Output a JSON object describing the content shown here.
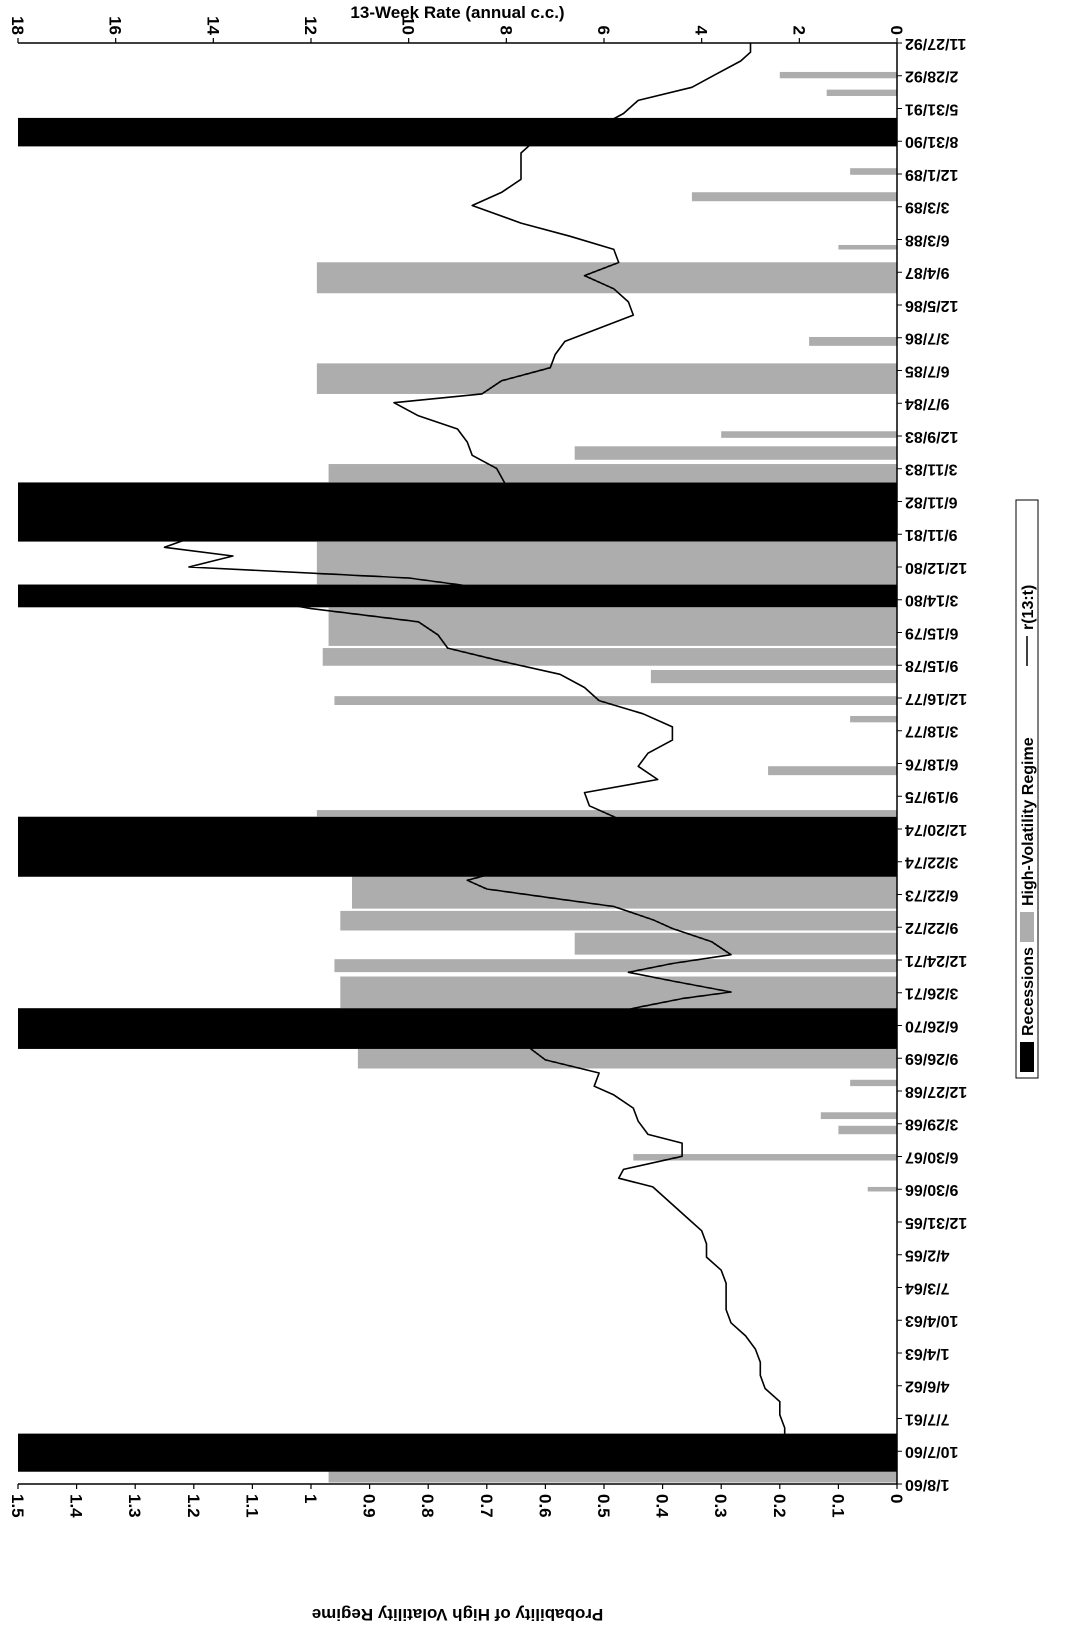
{
  "chart_data": {
    "type": "line",
    "orientation": "rotated-90-clockwise",
    "left_axis_title": "Probability of High Volatility Regime",
    "left_axis_ticks": [
      "0",
      "0.1",
      "0.2",
      "0.3",
      "0.4",
      "0.5",
      "0.6",
      "0.7",
      "0.8",
      "0.9",
      "1",
      "1.1",
      "1.2",
      "1.3",
      "1.4",
      "1.5"
    ],
    "left_axis_range": [
      0,
      1.5
    ],
    "top_axis_title": "13-Week Rate (annual c.c.)",
    "top_axis_ticks": [
      "0",
      "2",
      "4",
      "6",
      "8",
      "10",
      "12",
      "14",
      "16",
      "18"
    ],
    "top_axis_range": [
      0,
      18
    ],
    "date_labels": [
      "1/8/60",
      "10/7/60",
      "7/7/61",
      "4/6/62",
      "1/4/63",
      "10/4/63",
      "7/3/64",
      "4/2/65",
      "12/31/65",
      "9/30/66",
      "6/30/67",
      "3/29/68",
      "12/27/68",
      "9/26/69",
      "6/26/70",
      "3/26/71",
      "12/24/71",
      "9/22/72",
      "6/22/73",
      "3/22/74",
      "12/20/74",
      "9/19/75",
      "6/18/76",
      "3/18/77",
      "12/16/77",
      "9/15/78",
      "6/15/79",
      "3/14/80",
      "12/12/80",
      "9/11/81",
      "6/11/82",
      "3/11/83",
      "12/9/83",
      "9/7/84",
      "6/7/85",
      "3/7/86",
      "12/5/86",
      "9/4/87",
      "6/3/88",
      "3/3/89",
      "12/1/89",
      "8/31/90",
      "5/31/91",
      "2/28/92",
      "11/27/92"
    ],
    "date_range": [
      1960.02,
      1992.91
    ],
    "recessions": [
      {
        "label": "1960-61",
        "start": 1960.3,
        "end": 1961.17,
        "height": 1.5
      },
      {
        "label": "1969-70",
        "start": 1969.95,
        "end": 1970.88,
        "height": 1.5
      },
      {
        "label": "1973-75",
        "start": 1973.88,
        "end": 1975.25,
        "height": 1.5
      },
      {
        "label": "1980",
        "start": 1980.03,
        "end": 1980.55,
        "height": 1.5
      },
      {
        "label": "1981-82",
        "start": 1981.53,
        "end": 1982.88,
        "height": 1.5
      },
      {
        "label": "1990-91",
        "start": 1990.55,
        "end": 1991.2,
        "height": 1.5
      }
    ],
    "high_volatility_regime": [
      {
        "start": 1960.05,
        "end": 1960.35,
        "max": 0.97
      },
      {
        "start": 1966.7,
        "end": 1966.8,
        "max": 0.05
      },
      {
        "start": 1967.4,
        "end": 1967.55,
        "max": 0.45
      },
      {
        "start": 1968.0,
        "end": 1968.2,
        "max": 0.1
      },
      {
        "start": 1968.35,
        "end": 1968.5,
        "max": 0.13
      },
      {
        "start": 1969.1,
        "end": 1969.25,
        "max": 0.08
      },
      {
        "start": 1969.5,
        "end": 1969.95,
        "max": 0.92
      },
      {
        "start": 1970.88,
        "end": 1971.6,
        "max": 0.95
      },
      {
        "start": 1971.7,
        "end": 1972.0,
        "max": 0.96
      },
      {
        "start": 1972.1,
        "end": 1972.6,
        "max": 0.55
      },
      {
        "start": 1972.65,
        "end": 1973.1,
        "max": 0.95
      },
      {
        "start": 1973.15,
        "end": 1973.88,
        "max": 0.93
      },
      {
        "start": 1975.25,
        "end": 1975.4,
        "max": 0.99
      },
      {
        "start": 1976.2,
        "end": 1976.4,
        "max": 0.22
      },
      {
        "start": 1977.4,
        "end": 1977.55,
        "max": 0.08
      },
      {
        "start": 1977.8,
        "end": 1978.0,
        "max": 0.96
      },
      {
        "start": 1978.3,
        "end": 1978.6,
        "max": 0.42
      },
      {
        "start": 1978.7,
        "end": 1979.1,
        "max": 0.98
      },
      {
        "start": 1979.15,
        "end": 1980.03,
        "max": 0.97
      },
      {
        "start": 1980.55,
        "end": 1981.53,
        "max": 0.99
      },
      {
        "start": 1982.88,
        "end": 1983.3,
        "max": 0.97
      },
      {
        "start": 1983.4,
        "end": 1983.7,
        "max": 0.55
      },
      {
        "start": 1983.9,
        "end": 1984.05,
        "max": 0.3
      },
      {
        "start": 1984.9,
        "end": 1985.6,
        "max": 0.99
      },
      {
        "start": 1986.0,
        "end": 1986.2,
        "max": 0.15
      },
      {
        "start": 1987.2,
        "end": 1987.9,
        "max": 0.99
      },
      {
        "start": 1988.2,
        "end": 1988.3,
        "max": 0.1
      },
      {
        "start": 1989.3,
        "end": 1989.5,
        "max": 0.35
      },
      {
        "start": 1989.9,
        "end": 1990.05,
        "max": 0.08
      },
      {
        "start": 1991.7,
        "end": 1991.85,
        "max": 0.12
      },
      {
        "start": 1992.1,
        "end": 1992.25,
        "max": 0.2
      }
    ],
    "rate_series": {
      "name": "r(13:t)",
      "points": [
        [
          1961.0,
          2.3
        ],
        [
          1961.3,
          2.3
        ],
        [
          1961.6,
          2.4
        ],
        [
          1961.9,
          2.4
        ],
        [
          1962.2,
          2.7
        ],
        [
          1962.5,
          2.8
        ],
        [
          1962.8,
          2.8
        ],
        [
          1963.1,
          2.9
        ],
        [
          1963.4,
          3.1
        ],
        [
          1963.7,
          3.4
        ],
        [
          1964.0,
          3.5
        ],
        [
          1964.3,
          3.5
        ],
        [
          1964.6,
          3.5
        ],
        [
          1964.9,
          3.6
        ],
        [
          1965.2,
          3.9
        ],
        [
          1965.5,
          3.9
        ],
        [
          1965.8,
          4.0
        ],
        [
          1966.1,
          4.3
        ],
        [
          1966.4,
          4.6
        ],
        [
          1966.8,
          5.0
        ],
        [
          1967.0,
          5.7
        ],
        [
          1967.2,
          5.6
        ],
        [
          1967.5,
          4.4
        ],
        [
          1967.8,
          4.4
        ],
        [
          1968.0,
          5.1
        ],
        [
          1968.3,
          5.3
        ],
        [
          1968.6,
          5.4
        ],
        [
          1968.9,
          5.8
        ],
        [
          1969.1,
          6.2
        ],
        [
          1969.4,
          6.1
        ],
        [
          1969.7,
          7.2
        ],
        [
          1969.95,
          7.5
        ],
        [
          1970.3,
          7.0
        ],
        [
          1970.6,
          6.5
        ],
        [
          1970.9,
          5.3
        ],
        [
          1971.1,
          4.4
        ],
        [
          1971.25,
          3.4
        ],
        [
          1971.5,
          4.6
        ],
        [
          1971.7,
          5.5
        ],
        [
          1971.9,
          4.6
        ],
        [
          1972.1,
          3.4
        ],
        [
          1972.4,
          3.8
        ],
        [
          1972.7,
          4.6
        ],
        [
          1972.9,
          5.0
        ],
        [
          1973.2,
          5.8
        ],
        [
          1973.4,
          7.1
        ],
        [
          1973.6,
          8.4
        ],
        [
          1973.8,
          8.8
        ],
        [
          1974.1,
          7.8
        ],
        [
          1974.4,
          8.2
        ],
        [
          1974.7,
          8.4
        ],
        [
          1974.9,
          7.2
        ],
        [
          1975.2,
          5.7
        ],
        [
          1975.5,
          6.3
        ],
        [
          1975.8,
          6.4
        ],
        [
          1976.1,
          4.9
        ],
        [
          1976.4,
          5.3
        ],
        [
          1976.7,
          5.1
        ],
        [
          1977.0,
          4.6
        ],
        [
          1977.3,
          4.6
        ],
        [
          1977.6,
          5.2
        ],
        [
          1977.9,
          6.1
        ],
        [
          1978.2,
          6.4
        ],
        [
          1978.5,
          6.9
        ],
        [
          1978.8,
          8.1
        ],
        [
          1979.1,
          9.2
        ],
        [
          1979.4,
          9.4
        ],
        [
          1979.7,
          9.8
        ],
        [
          1980.0,
          12.0
        ],
        [
          1980.2,
          13.0
        ],
        [
          1980.4,
          8.0
        ],
        [
          1980.7,
          10.0
        ],
        [
          1980.95,
          14.5
        ],
        [
          1981.2,
          13.6
        ],
        [
          1981.4,
          15.0
        ],
        [
          1981.6,
          14.5
        ],
        [
          1981.9,
          11.0
        ],
        [
          1982.2,
          12.5
        ],
        [
          1982.5,
          12.6
        ],
        [
          1982.8,
          8.0
        ],
        [
          1983.2,
          8.2
        ],
        [
          1983.5,
          8.7
        ],
        [
          1983.8,
          8.8
        ],
        [
          1984.1,
          9.0
        ],
        [
          1984.4,
          9.8
        ],
        [
          1984.7,
          10.3
        ],
        [
          1984.9,
          8.5
        ],
        [
          1985.2,
          8.1
        ],
        [
          1985.5,
          7.1
        ],
        [
          1985.8,
          7.0
        ],
        [
          1986.1,
          6.8
        ],
        [
          1986.4,
          6.1
        ],
        [
          1986.7,
          5.4
        ],
        [
          1987.0,
          5.5
        ],
        [
          1987.3,
          5.8
        ],
        [
          1987.6,
          6.4
        ],
        [
          1987.9,
          5.7
        ],
        [
          1988.2,
          5.8
        ],
        [
          1988.5,
          6.7
        ],
        [
          1988.8,
          7.7
        ],
        [
          1989.2,
          8.7
        ],
        [
          1989.5,
          8.1
        ],
        [
          1989.8,
          7.7
        ],
        [
          1990.1,
          7.7
        ],
        [
          1990.4,
          7.7
        ],
        [
          1990.7,
          7.4
        ],
        [
          1991.0,
          6.1
        ],
        [
          1991.3,
          5.6
        ],
        [
          1991.6,
          5.3
        ],
        [
          1991.9,
          4.2
        ],
        [
          1992.2,
          3.7
        ],
        [
          1992.5,
          3.2
        ],
        [
          1992.7,
          3.0
        ],
        [
          1992.9,
          3.0
        ]
      ]
    },
    "legend": {
      "placement": "bottom",
      "items": [
        {
          "label": "Recessions",
          "style": "solid-black"
        },
        {
          "label": "High-Volatility Regime",
          "style": "gray-hatch"
        },
        {
          "label": "r(13:t)",
          "style": "line"
        }
      ]
    },
    "colors": {
      "recession": "#000000",
      "regime": "#8a8a8a",
      "rate_line": "#000000"
    }
  }
}
